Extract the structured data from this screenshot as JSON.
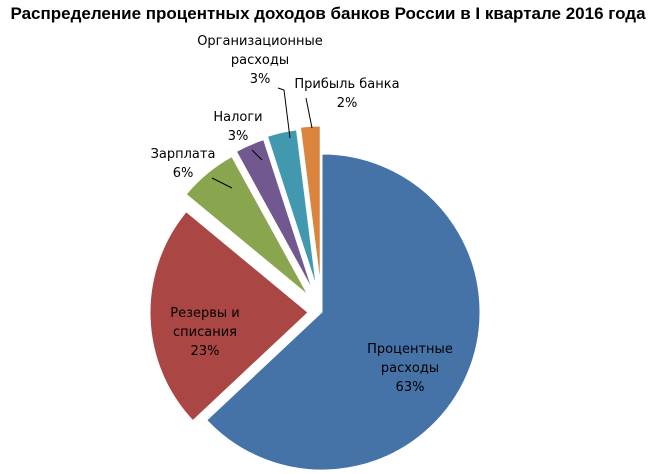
{
  "chart_data": {
    "type": "pie",
    "title": "Распределение процентных доходов банков России в I квартале 2016 года",
    "slices": [
      {
        "label": [
          "Процентные",
          "расходы"
        ],
        "value": 63,
        "value_label": "63%",
        "color": "#4572A7"
      },
      {
        "label": [
          "Резервы и",
          "списания"
        ],
        "value": 23,
        "value_label": "23%",
        "color": "#AA4643"
      },
      {
        "label": [
          "Зарплата"
        ],
        "value": 6,
        "value_label": "6%",
        "color": "#89A54E"
      },
      {
        "label": [
          "Налоги"
        ],
        "value": 3,
        "value_label": "3%",
        "color": "#71588F"
      },
      {
        "label": [
          "Организационные",
          "расходы"
        ],
        "value": 3,
        "value_label": "3%",
        "color": "#4198AF"
      },
      {
        "label": [
          "Прибыль банка"
        ],
        "value": 2,
        "value_label": "2%",
        "color": "#DB843D"
      }
    ]
  }
}
